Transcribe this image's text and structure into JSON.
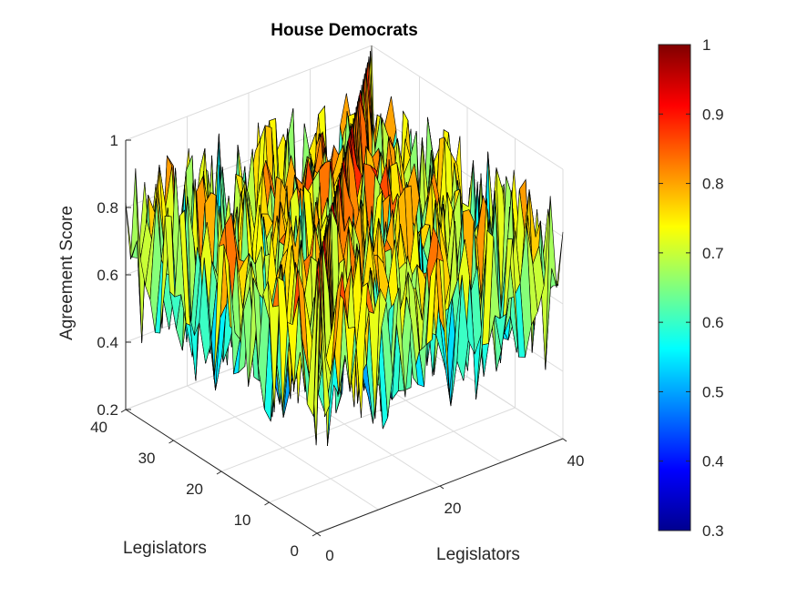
{
  "chart_data": {
    "type": "surface",
    "title": "House Democrats",
    "xlabel": "Legislators",
    "ylabel": "Legislators",
    "zlabel": "Agreement Score",
    "xlim": [
      0,
      40
    ],
    "ylim": [
      0,
      40
    ],
    "zlim": [
      0.2,
      1
    ],
    "xticks": [
      "0",
      "20",
      "40"
    ],
    "yticks": [
      "0",
      "10",
      "20",
      "30",
      "40"
    ],
    "zticks": [
      "0.2",
      "0.4",
      "0.6",
      "0.8",
      "1"
    ],
    "grid": true,
    "colormap": "jet",
    "colorbar": {
      "range": [
        0.3,
        1
      ],
      "ticks": [
        "0.3",
        "0.4",
        "0.5",
        "0.6",
        "0.7",
        "0.8",
        "0.9",
        "1"
      ]
    },
    "data_description_values": {
      "grid_size": [
        40,
        40
      ],
      "diagonal_value": 1,
      "typical_range": [
        0.3,
        0.95
      ]
    }
  }
}
